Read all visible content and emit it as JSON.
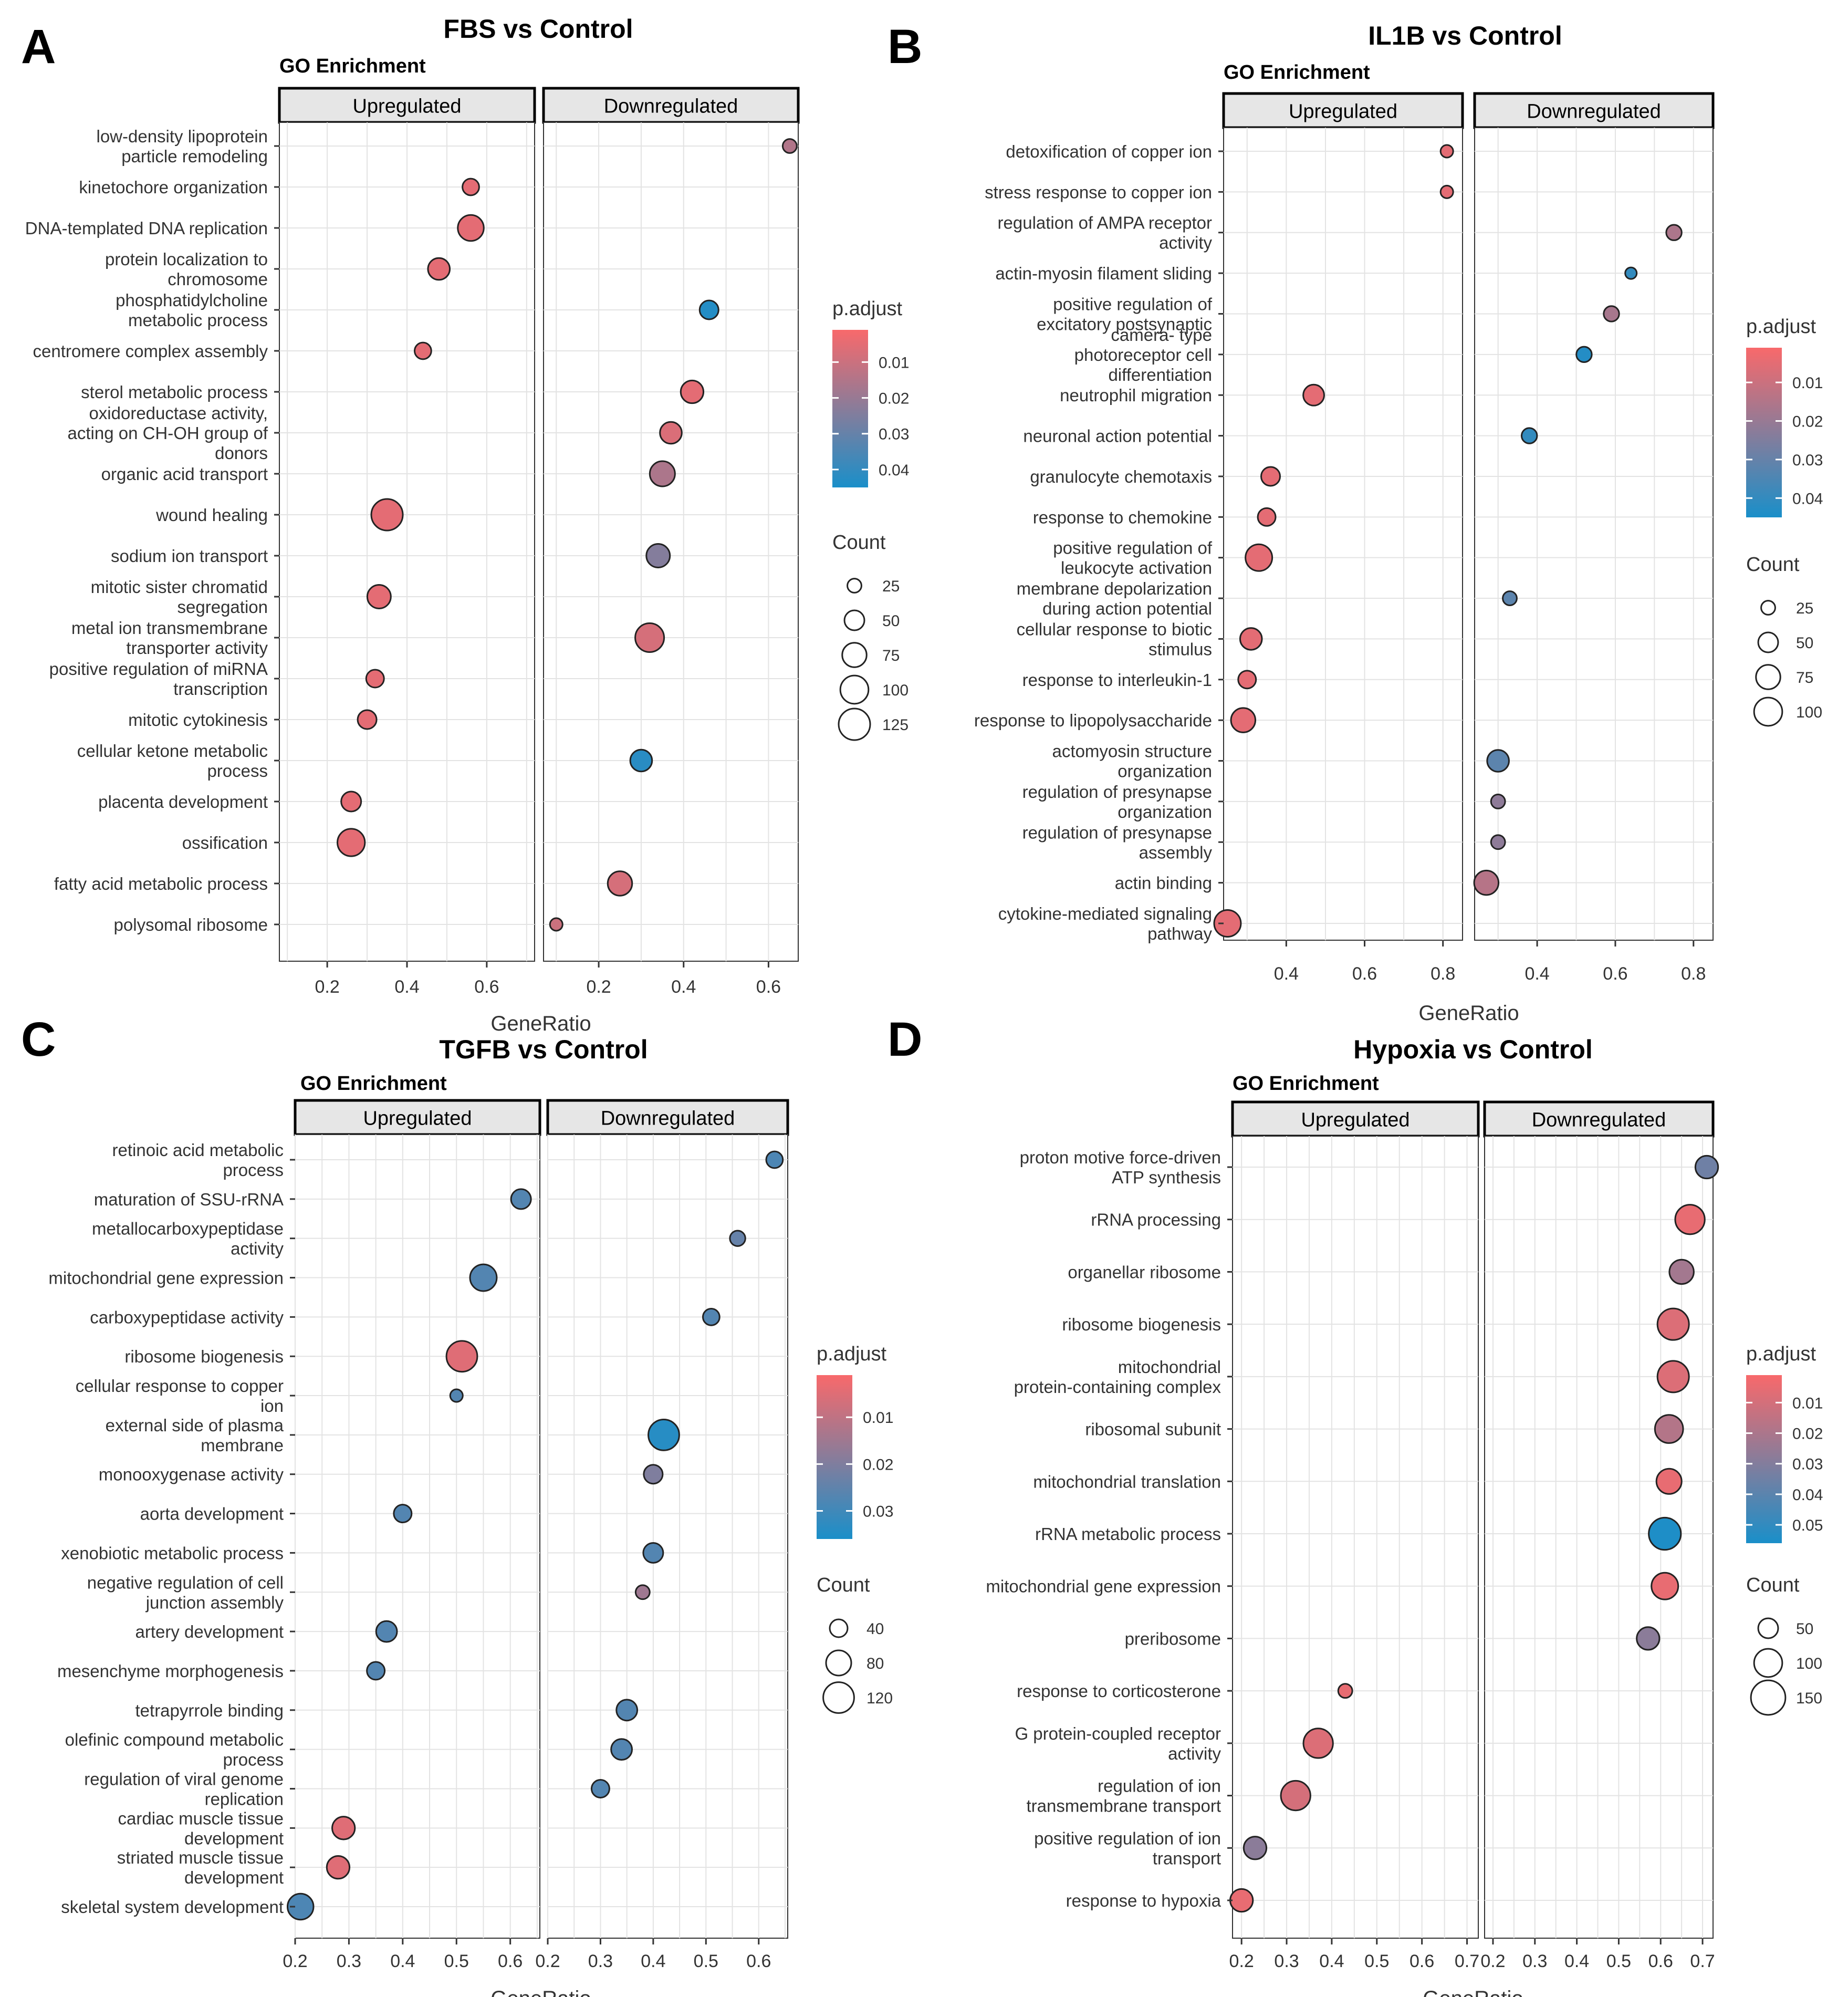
{
  "colors": {
    "low": "#F8696B",
    "high": "#1A8FC9",
    "grid": "#e3e3e3",
    "strip": "#e6e6e6"
  },
  "chart_data": [
    {
      "type": "scatter",
      "letter": "A",
      "title": "FBS vs Control",
      "subtitle": "GO Enrichment",
      "xlabel": "GeneRatio",
      "facets": [
        "Upregulated",
        "Downregulated"
      ],
      "xlim": [
        [
          0.08,
          0.72
        ],
        [
          0.07,
          0.67
        ]
      ],
      "xticks": [
        [
          0.2,
          0.4,
          0.6
        ],
        [
          0.2,
          0.4,
          0.6
        ]
      ],
      "categories": [
        "low-density lipoprotein\nparticle remodeling",
        "kinetochore organization",
        "DNA-templated DNA replication",
        "protein localization to\nchromosome",
        "phosphatidylcholine\nmetabolic process",
        "centromere complex assembly",
        "sterol metabolic process",
        "oxidoreductase activity,\nacting on CH-OH group of\ndonors",
        "organic acid transport",
        "wound healing",
        "sodium ion transport",
        "mitotic sister chromatid\nsegregation",
        "metal ion transmembrane\ntransporter activity",
        "positive regulation of miRNA\ntranscription",
        "mitotic cytokinesis",
        "cellular ketone metabolic\nprocess",
        "placenta development",
        "ossification",
        "fatty acid metabolic process",
        "polysomal ribosome"
      ],
      "points": [
        {
          "facet": 1,
          "cat": 0,
          "x": 0.65,
          "count": 25,
          "padj": 0.015
        },
        {
          "facet": 0,
          "cat": 1,
          "x": 0.56,
          "count": 35,
          "padj": 0.005
        },
        {
          "facet": 0,
          "cat": 2,
          "x": 0.56,
          "count": 85,
          "padj": 0.005
        },
        {
          "facet": 0,
          "cat": 3,
          "x": 0.48,
          "count": 60,
          "padj": 0.005
        },
        {
          "facet": 1,
          "cat": 4,
          "x": 0.46,
          "count": 45,
          "padj": 0.043
        },
        {
          "facet": 0,
          "cat": 5,
          "x": 0.44,
          "count": 35,
          "padj": 0.005
        },
        {
          "facet": 1,
          "cat": 6,
          "x": 0.42,
          "count": 65,
          "padj": 0.005
        },
        {
          "facet": 1,
          "cat": 7,
          "x": 0.37,
          "count": 60,
          "padj": 0.007
        },
        {
          "facet": 1,
          "cat": 8,
          "x": 0.35,
          "count": 80,
          "padj": 0.016
        },
        {
          "facet": 0,
          "cat": 9,
          "x": 0.35,
          "count": 125,
          "padj": 0.005
        },
        {
          "facet": 1,
          "cat": 10,
          "x": 0.34,
          "count": 70,
          "padj": 0.024
        },
        {
          "facet": 0,
          "cat": 11,
          "x": 0.33,
          "count": 70,
          "padj": 0.005
        },
        {
          "facet": 1,
          "cat": 12,
          "x": 0.32,
          "count": 105,
          "padj": 0.008
        },
        {
          "facet": 0,
          "cat": 13,
          "x": 0.32,
          "count": 40,
          "padj": 0.005
        },
        {
          "facet": 0,
          "cat": 14,
          "x": 0.3,
          "count": 45,
          "padj": 0.005
        },
        {
          "facet": 1,
          "cat": 15,
          "x": 0.3,
          "count": 60,
          "padj": 0.042
        },
        {
          "facet": 0,
          "cat": 16,
          "x": 0.26,
          "count": 50,
          "padj": 0.005
        },
        {
          "facet": 0,
          "cat": 17,
          "x": 0.26,
          "count": 95,
          "padj": 0.005
        },
        {
          "facet": 1,
          "cat": 18,
          "x": 0.25,
          "count": 75,
          "padj": 0.008
        },
        {
          "facet": 1,
          "cat": 19,
          "x": 0.1,
          "count": 20,
          "padj": 0.01
        }
      ],
      "legend": {
        "color_title": "p.adjust",
        "color_range": [
          0.001,
          0.045
        ],
        "color_ticks": [
          0.01,
          0.02,
          0.03,
          0.04
        ],
        "size_title": "Count",
        "size_values": [
          25,
          50,
          75,
          100,
          125
        ]
      }
    },
    {
      "type": "scatter",
      "letter": "B",
      "title": "IL1B vs Control",
      "subtitle": "GO Enrichment",
      "xlabel": "GeneRatio",
      "facets": [
        "Upregulated",
        "Downregulated"
      ],
      "xlim": [
        [
          0.24,
          0.85
        ],
        [
          0.24,
          0.85
        ]
      ],
      "xticks": [
        [
          0.4,
          0.6,
          0.8
        ],
        [
          0.4,
          0.6,
          0.8
        ]
      ],
      "categories": [
        "detoxification of copper ion",
        "stress response to copper ion",
        "regulation of AMPA receptor\nactivity",
        "actin-myosin filament sliding",
        "positive regulation of\nexcitatory postsynaptic",
        "camera- type\nphotoreceptor cell\ndifferentiation",
        "neutrophil migration",
        "neuronal action potential",
        "granulocyte chemotaxis",
        "response to chemokine",
        "positive regulation of\nleukocyte activation",
        "membrane depolarization\nduring action potential",
        "cellular response to biotic\nstimulus",
        "response to interleukin-1",
        "response to lipopolysaccharide",
        "actomyosin structure\norganization",
        "regulation of presynapse\norganization",
        "regulation of presynapse\nassembly",
        "actin binding",
        "cytokine-mediated signaling\npathway"
      ],
      "points": [
        {
          "facet": 0,
          "cat": 0,
          "x": 0.81,
          "count": 20,
          "padj": 0.005
        },
        {
          "facet": 0,
          "cat": 1,
          "x": 0.81,
          "count": 20,
          "padj": 0.005
        },
        {
          "facet": 1,
          "cat": 2,
          "x": 0.75,
          "count": 30,
          "padj": 0.016
        },
        {
          "facet": 1,
          "cat": 3,
          "x": 0.64,
          "count": 15,
          "padj": 0.04
        },
        {
          "facet": 1,
          "cat": 4,
          "x": 0.59,
          "count": 30,
          "padj": 0.017
        },
        {
          "facet": 1,
          "cat": 5,
          "x": 0.52,
          "count": 30,
          "padj": 0.043
        },
        {
          "facet": 0,
          "cat": 6,
          "x": 0.47,
          "count": 55,
          "padj": 0.005
        },
        {
          "facet": 1,
          "cat": 7,
          "x": 0.38,
          "count": 30,
          "padj": 0.04
        },
        {
          "facet": 0,
          "cat": 8,
          "x": 0.36,
          "count": 45,
          "padj": 0.005
        },
        {
          "facet": 0,
          "cat": 9,
          "x": 0.35,
          "count": 40,
          "padj": 0.005
        },
        {
          "facet": 0,
          "cat": 10,
          "x": 0.33,
          "count": 90,
          "padj": 0.005
        },
        {
          "facet": 1,
          "cat": 11,
          "x": 0.33,
          "count": 25,
          "padj": 0.032
        },
        {
          "facet": 0,
          "cat": 12,
          "x": 0.31,
          "count": 60,
          "padj": 0.005
        },
        {
          "facet": 0,
          "cat": 13,
          "x": 0.3,
          "count": 40,
          "padj": 0.005
        },
        {
          "facet": 0,
          "cat": 14,
          "x": 0.29,
          "count": 75,
          "padj": 0.005
        },
        {
          "facet": 1,
          "cat": 15,
          "x": 0.3,
          "count": 60,
          "padj": 0.032
        },
        {
          "facet": 1,
          "cat": 16,
          "x": 0.3,
          "count": 25,
          "padj": 0.022
        },
        {
          "facet": 1,
          "cat": 17,
          "x": 0.3,
          "count": 25,
          "padj": 0.022
        },
        {
          "facet": 1,
          "cat": 18,
          "x": 0.27,
          "count": 75,
          "padj": 0.014
        },
        {
          "facet": 0,
          "cat": 19,
          "x": 0.25,
          "count": 90,
          "padj": 0.005
        }
      ],
      "legend": {
        "color_title": "p.adjust",
        "color_range": [
          0.001,
          0.045
        ],
        "color_ticks": [
          0.01,
          0.02,
          0.03,
          0.04
        ],
        "size_title": "Count",
        "size_values": [
          25,
          50,
          75,
          100
        ]
      }
    },
    {
      "type": "scatter",
      "letter": "C",
      "title": "TGFB vs Control",
      "subtitle": "GO Enrichment",
      "xlabel": "GeneRatio",
      "facets": [
        "Upregulated",
        "Downregulated"
      ],
      "xlim": [
        [
          0.2,
          0.655
        ],
        [
          0.2,
          0.655
        ]
      ],
      "xticks": [
        [
          0.2,
          0.3,
          0.4,
          0.5,
          0.6
        ],
        [
          0.2,
          0.3,
          0.4,
          0.5,
          0.6
        ]
      ],
      "categories": [
        "retinoic acid metabolic\nprocess",
        "maturation of SSU-rRNA",
        "metallocarboxypeptidase\nactivity",
        "mitochondrial gene expression",
        "carboxypeptidase activity",
        "ribosome biogenesis",
        "cellular response to copper\nion",
        "external side of plasma\nmembrane",
        "monooxygenase activity",
        "aorta development",
        "xenobiotic metabolic process",
        "negative regulation of cell\njunction assembly",
        "artery development",
        "mesenchyme morphogenesis",
        "tetrapyrrole binding",
        "olefinic compound metabolic\nprocess",
        "regulation of viral genome\nreplication",
        "cardiac muscle tissue\ndevelopment",
        "striated muscle tissue\ndevelopment",
        "skeletal system development"
      ],
      "points": [
        {
          "facet": 1,
          "cat": 0,
          "x": 0.63,
          "count": 35,
          "padj": 0.028
        },
        {
          "facet": 0,
          "cat": 1,
          "x": 0.62,
          "count": 50,
          "padj": 0.027
        },
        {
          "facet": 1,
          "cat": 2,
          "x": 0.56,
          "count": 30,
          "padj": 0.024
        },
        {
          "facet": 0,
          "cat": 3,
          "x": 0.55,
          "count": 90,
          "padj": 0.027
        },
        {
          "facet": 1,
          "cat": 4,
          "x": 0.51,
          "count": 35,
          "padj": 0.027
        },
        {
          "facet": 0,
          "cat": 5,
          "x": 0.51,
          "count": 120,
          "padj": 0.005
        },
        {
          "facet": 0,
          "cat": 6,
          "x": 0.5,
          "count": 20,
          "padj": 0.027
        },
        {
          "facet": 1,
          "cat": 7,
          "x": 0.42,
          "count": 120,
          "padj": 0.034
        },
        {
          "facet": 1,
          "cat": 8,
          "x": 0.4,
          "count": 45,
          "padj": 0.02
        },
        {
          "facet": 0,
          "cat": 9,
          "x": 0.4,
          "count": 40,
          "padj": 0.027
        },
        {
          "facet": 1,
          "cat": 10,
          "x": 0.4,
          "count": 50,
          "padj": 0.027
        },
        {
          "facet": 1,
          "cat": 11,
          "x": 0.38,
          "count": 25,
          "padj": 0.015
        },
        {
          "facet": 0,
          "cat": 12,
          "x": 0.37,
          "count": 55,
          "padj": 0.027
        },
        {
          "facet": 0,
          "cat": 13,
          "x": 0.35,
          "count": 40,
          "padj": 0.027
        },
        {
          "facet": 1,
          "cat": 14,
          "x": 0.35,
          "count": 55,
          "padj": 0.027
        },
        {
          "facet": 1,
          "cat": 15,
          "x": 0.34,
          "count": 55,
          "padj": 0.027
        },
        {
          "facet": 1,
          "cat": 16,
          "x": 0.3,
          "count": 40,
          "padj": 0.027
        },
        {
          "facet": 0,
          "cat": 17,
          "x": 0.29,
          "count": 65,
          "padj": 0.005
        },
        {
          "facet": 0,
          "cat": 18,
          "x": 0.28,
          "count": 65,
          "padj": 0.005
        },
        {
          "facet": 0,
          "cat": 19,
          "x": 0.21,
          "count": 85,
          "padj": 0.028
        }
      ],
      "legend": {
        "color_title": "p.adjust",
        "color_range": [
          0.001,
          0.036
        ],
        "color_ticks": [
          0.01,
          0.02,
          0.03
        ],
        "size_title": "Count",
        "size_values": [
          40,
          80,
          120
        ]
      }
    },
    {
      "type": "scatter",
      "letter": "D",
      "title": "Hypoxia vs Control",
      "subtitle": "GO Enrichment",
      "xlabel": "GeneRatio",
      "facets": [
        "Upregulated",
        "Downregulated"
      ],
      "xlim": [
        [
          0.18,
          0.725
        ],
        [
          0.18,
          0.725
        ]
      ],
      "xticks": [
        [
          0.2,
          0.3,
          0.4,
          0.5,
          0.6,
          0.7
        ],
        [
          0.2,
          0.3,
          0.4,
          0.5,
          0.6,
          0.7
        ]
      ],
      "categories": [
        "proton motive force-driven\nATP synthesis",
        "rRNA processing",
        "organellar ribosome",
        "ribosome biogenesis",
        "mitochondrial\nprotein-containing complex",
        "ribosomal subunit",
        "mitochondrial translation",
        "rRNA metabolic process",
        "mitochondrial gene expression",
        "preribosome",
        "response to corticosterone",
        "G protein-coupled receptor\nactivity",
        "regulation of ion\ntransmembrane transport",
        "positive regulation of ion\ntransport",
        "response to hypoxia"
      ],
      "points": [
        {
          "facet": 1,
          "cat": 0,
          "x": 0.71,
          "count": 65,
          "padj": 0.035
        },
        {
          "facet": 1,
          "cat": 1,
          "x": 0.67,
          "count": 110,
          "padj": 0.005
        },
        {
          "facet": 1,
          "cat": 2,
          "x": 0.65,
          "count": 75,
          "padj": 0.022
        },
        {
          "facet": 1,
          "cat": 3,
          "x": 0.63,
          "count": 125,
          "padj": 0.008
        },
        {
          "facet": 1,
          "cat": 4,
          "x": 0.63,
          "count": 125,
          "padj": 0.008
        },
        {
          "facet": 1,
          "cat": 5,
          "x": 0.62,
          "count": 100,
          "padj": 0.018
        },
        {
          "facet": 1,
          "cat": 6,
          "x": 0.62,
          "count": 80,
          "padj": 0.005
        },
        {
          "facet": 1,
          "cat": 7,
          "x": 0.61,
          "count": 130,
          "padj": 0.055
        },
        {
          "facet": 1,
          "cat": 8,
          "x": 0.61,
          "count": 90,
          "padj": 0.005
        },
        {
          "facet": 1,
          "cat": 9,
          "x": 0.57,
          "count": 65,
          "padj": 0.028
        },
        {
          "facet": 0,
          "cat": 10,
          "x": 0.43,
          "count": 25,
          "padj": 0.005
        },
        {
          "facet": 0,
          "cat": 11,
          "x": 0.37,
          "count": 110,
          "padj": 0.008
        },
        {
          "facet": 0,
          "cat": 12,
          "x": 0.32,
          "count": 110,
          "padj": 0.01
        },
        {
          "facet": 0,
          "cat": 13,
          "x": 0.23,
          "count": 65,
          "padj": 0.028
        },
        {
          "facet": 0,
          "cat": 14,
          "x": 0.2,
          "count": 65,
          "padj": 0.005
        }
      ],
      "legend": {
        "color_title": "p.adjust",
        "color_range": [
          0.001,
          0.056
        ],
        "color_ticks": [
          0.01,
          0.02,
          0.03,
          0.04,
          0.05
        ],
        "size_title": "Count",
        "size_values": [
          50,
          100,
          150
        ]
      }
    }
  ]
}
